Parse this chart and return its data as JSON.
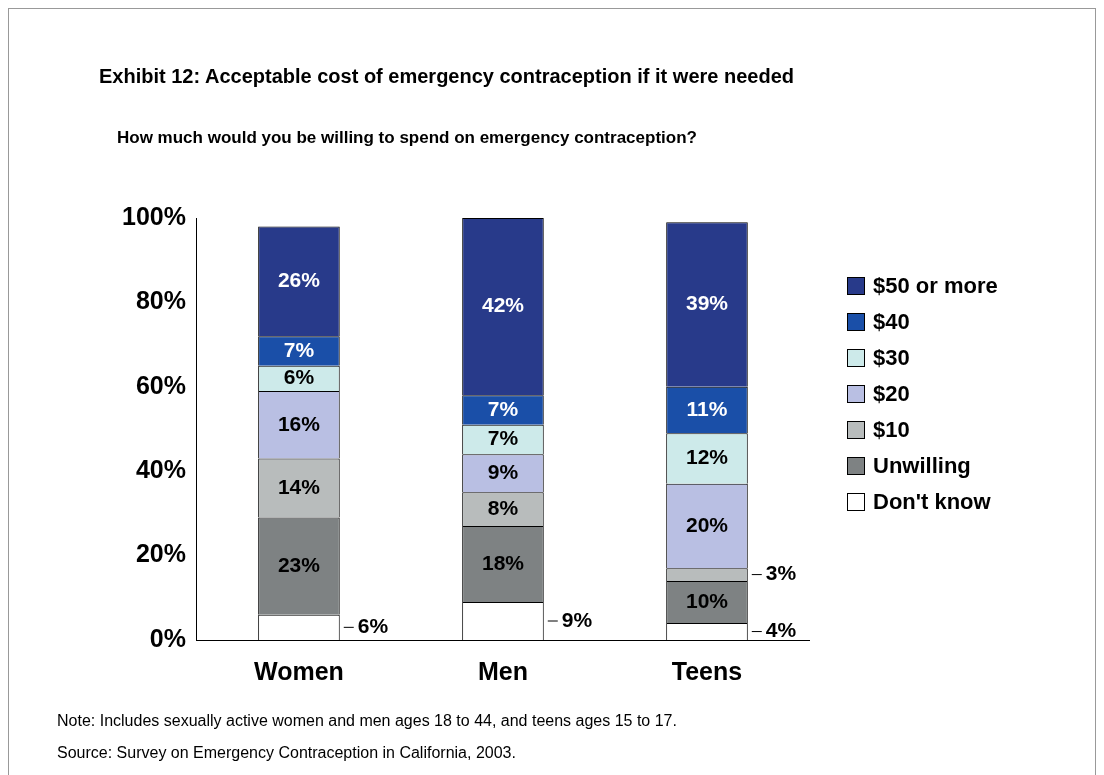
{
  "chart_data": {
    "type": "bar",
    "stacked": true,
    "title": "Exhibit 12: Acceptable cost of emergency contraception if it were needed",
    "subtitle": "How much would you be willing to spend on emergency contraception?",
    "categories": [
      "Women",
      "Men",
      "Teens"
    ],
    "series": [
      {
        "name": "Don't know",
        "color": "#ffffff",
        "values": [
          6,
          9,
          4
        ],
        "value_labels": [
          "6%",
          "9%",
          "4%"
        ]
      },
      {
        "name": "Unwilling",
        "color": "#7e8283",
        "values": [
          23,
          18,
          10
        ],
        "value_labels": [
          "23%",
          "18%",
          "10%"
        ]
      },
      {
        "name": "$10",
        "color": "#b8bcbc",
        "values": [
          14,
          8,
          3
        ],
        "value_labels": [
          "14%",
          "8%",
          "3%"
        ]
      },
      {
        "name": "$20",
        "color": "#b9bfe3",
        "values": [
          16,
          9,
          20
        ],
        "value_labels": [
          "16%",
          "9%",
          "20%"
        ]
      },
      {
        "name": "$30",
        "color": "#cdeaea",
        "values": [
          6,
          7,
          12
        ],
        "value_labels": [
          "6%",
          "7%",
          "12%"
        ]
      },
      {
        "name": "$40",
        "color": "#1a4fa8",
        "values": [
          7,
          7,
          11
        ],
        "value_labels": [
          "7%",
          "7%",
          "11%"
        ]
      },
      {
        "name": "$50 or more",
        "color": "#283a8a",
        "values": [
          26,
          42,
          39
        ],
        "value_labels": [
          "26%",
          "42%",
          "39%"
        ]
      }
    ],
    "ylim": [
      0,
      100
    ],
    "yticks": [
      {
        "value": 0,
        "label": "0%"
      },
      {
        "value": 20,
        "label": "20%"
      },
      {
        "value": 40,
        "label": "40%"
      },
      {
        "value": 60,
        "label": "60%"
      },
      {
        "value": 80,
        "label": "80%"
      },
      {
        "value": 100,
        "label": "100%"
      }
    ],
    "grid": false,
    "legend": "right",
    "annotations": [
      "Note:  Includes sexually active women and men ages 18 to 44, and teens ages 15 to 17.",
      "Source:  Survey on Emergency Contraception in California, 2003."
    ]
  }
}
